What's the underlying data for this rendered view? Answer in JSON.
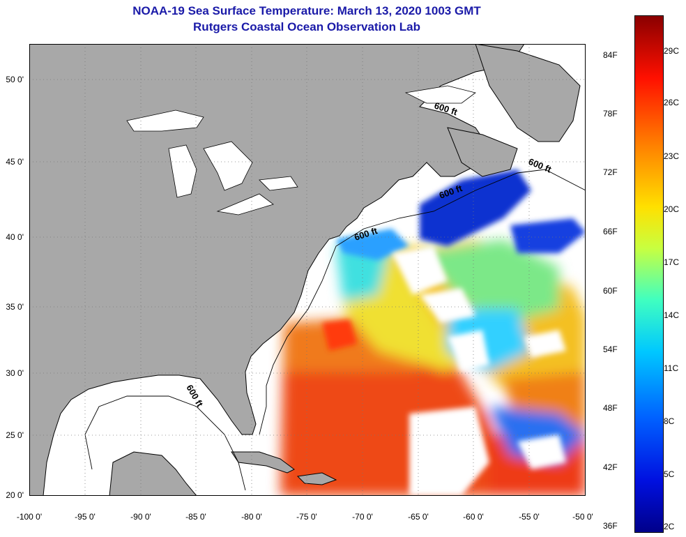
{
  "title": {
    "line1": "NOAA-19 Sea Surface Temperature:  March 13, 2020 1003 GMT",
    "line2": "Rutgers Coastal Ocean Observation Lab"
  },
  "axes": {
    "lat_labels": [
      "50 0'",
      "45 0'",
      "40 0'",
      "35 0'",
      "30 0'",
      "25 0'",
      "20 0'"
    ],
    "lon_labels": [
      "-100 0'",
      "-95 0'",
      "-90 0'",
      "-85 0'",
      "-80 0'",
      "-75 0'",
      "-70 0'",
      "-65 0'",
      "-60 0'",
      "-55 0'",
      "-50 0'"
    ],
    "lat_range": [
      20,
      52.5
    ],
    "lon_range": [
      -100,
      -50
    ]
  },
  "contour_labels": [
    "600 ft",
    "600 ft",
    "600 ft",
    "600 ft",
    "600 ft"
  ],
  "colorbar": {
    "fahrenheit_labels": [
      "84F",
      "78F",
      "72F",
      "66F",
      "60F",
      "54F",
      "48F",
      "42F",
      "36F"
    ],
    "celsius_labels": [
      "29C",
      "26C",
      "23C",
      "20C",
      "17C",
      "14C",
      "11C",
      "8C",
      "5C",
      "2C"
    ]
  },
  "colors": {
    "land": "#a8a8a8",
    "title": "#1a1aa8",
    "cloud": "#ffffff"
  }
}
